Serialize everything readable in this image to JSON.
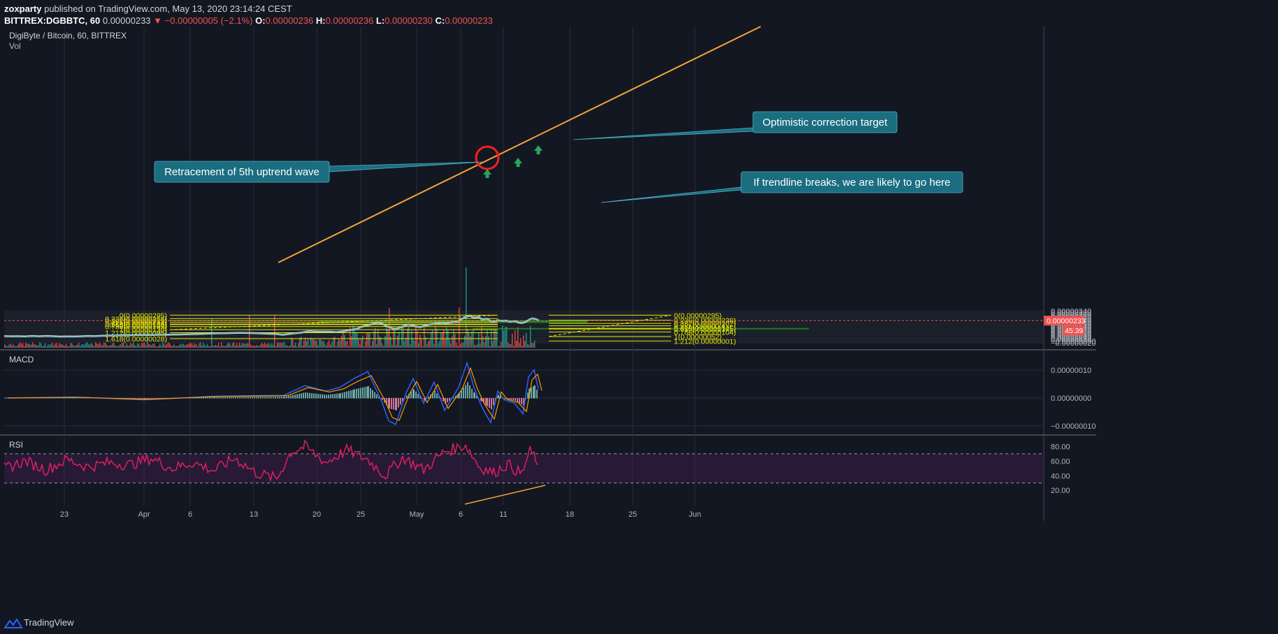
{
  "header": {
    "author": "zoxparty",
    "published": "published on TradingView.com, May 13, 2020 23:14:24 CEST",
    "symbol": "BITTREX:DGBBTC, 60",
    "price": "0.00000233",
    "arrow": "▼",
    "change": "−0.00000005 (−2.1%)",
    "o_label": "O:",
    "o_value": "0.00000236",
    "h_label": "H:",
    "h_value": "0.00000236",
    "l_label": "L:",
    "l_value": "0.00000230",
    "c_label": "C:",
    "c_value": "0.00000233"
  },
  "main_pane": {
    "title": "DigiByte / Bitcoin, 60, BITTREX",
    "vol_label": "Vol"
  },
  "macd_label": "MACD",
  "rsi_label": "RSI",
  "last_price_tag": "0.00000233",
  "countdown_tag": "45:39",
  "footer": {
    "brand": "TradingView"
  },
  "colors": {
    "background": "#131722",
    "grid": "#2a2e39",
    "fib": "#e5e500",
    "trendline": "#f7a23b",
    "zone": "#1fa81f",
    "callout": "#1b6d80",
    "rsi": "#e91e63",
    "macd_line": "#2962ff",
    "signal_line": "#ff9800",
    "up": "#26a69a",
    "down": "#ef5350"
  },
  "chart_data": {
    "type": "candlestick",
    "x_ticks": [
      "23",
      "Apr",
      "6",
      "13",
      "20",
      "25",
      "May",
      "6",
      "11",
      "18",
      "25",
      "Jun"
    ],
    "y_ticks": [
      "0.00000340",
      "0.00000320",
      "0.00000300",
      "0.00000280",
      "0.00000260",
      "0.00000240",
      "0.00000220",
      "0.00000200",
      "0.00000180",
      "0.00000160",
      "0.00000140",
      "0.00000120",
      "0.00000100",
      "0.00000080",
      "0.00000060",
      "0.00000040",
      "0.00000020",
      "−0.00000000",
      "−0.00000020"
    ],
    "y_tick_values": [
      340,
      320,
      300,
      280,
      260,
      240,
      220,
      200,
      180,
      160,
      140,
      120,
      100,
      80,
      60,
      40,
      20,
      0,
      -20
    ],
    "y_unit_scale": "1e-8 BTC",
    "last_price": 233,
    "price_path": [
      [
        0,
        57
      ],
      [
        10,
        55
      ],
      [
        20,
        56
      ],
      [
        30,
        54
      ],
      [
        40,
        58
      ],
      [
        50,
        55
      ],
      [
        60,
        58
      ],
      [
        70,
        56
      ],
      [
        80,
        52
      ],
      [
        90,
        54
      ],
      [
        100,
        53
      ],
      [
        110,
        55
      ],
      [
        120,
        58
      ],
      [
        130,
        57
      ],
      [
        140,
        60
      ],
      [
        150,
        62
      ],
      [
        160,
        63
      ],
      [
        170,
        66
      ],
      [
        180,
        65
      ],
      [
        190,
        69
      ],
      [
        200,
        70
      ],
      [
        210,
        69
      ],
      [
        220,
        71
      ],
      [
        230,
        72
      ],
      [
        240,
        74
      ],
      [
        250,
        75
      ],
      [
        260,
        77
      ],
      [
        270,
        79
      ],
      [
        280,
        81
      ],
      [
        290,
        84
      ],
      [
        300,
        87
      ],
      [
        310,
        89
      ],
      [
        320,
        90
      ],
      [
        330,
        93
      ],
      [
        340,
        94
      ],
      [
        350,
        92
      ],
      [
        360,
        90
      ],
      [
        370,
        86
      ],
      [
        380,
        83
      ],
      [
        390,
        80
      ],
      [
        398,
        72
      ],
      [
        405,
        78
      ],
      [
        415,
        88
      ],
      [
        425,
        96
      ],
      [
        435,
        112
      ],
      [
        445,
        109
      ],
      [
        455,
        107
      ],
      [
        465,
        108
      ],
      [
        475,
        102
      ],
      [
        485,
        110
      ],
      [
        495,
        125
      ],
      [
        505,
        140
      ],
      [
        510,
        160
      ],
      [
        518,
        176
      ],
      [
        525,
        190
      ],
      [
        530,
        205
      ],
      [
        535,
        212
      ],
      [
        540,
        200
      ],
      [
        545,
        178
      ],
      [
        550,
        160
      ],
      [
        555,
        148
      ],
      [
        558,
        135
      ],
      [
        565,
        150
      ],
      [
        572,
        170
      ],
      [
        578,
        188
      ],
      [
        584,
        175
      ],
      [
        590,
        165
      ],
      [
        595,
        158
      ],
      [
        602,
        175
      ],
      [
        610,
        190
      ],
      [
        618,
        198
      ],
      [
        625,
        210
      ],
      [
        632,
        205
      ],
      [
        640,
        213
      ],
      [
        648,
        220
      ],
      [
        654,
        250
      ],
      [
        660,
        272
      ],
      [
        666,
        290
      ],
      [
        672,
        262
      ],
      [
        678,
        275
      ],
      [
        684,
        245
      ],
      [
        690,
        256
      ],
      [
        696,
        228
      ],
      [
        700,
        218
      ],
      [
        706,
        238
      ],
      [
        712,
        230
      ],
      [
        718,
        233
      ],
      [
        724,
        220
      ],
      [
        730,
        228
      ],
      [
        736,
        210
      ],
      [
        740,
        205
      ],
      [
        746,
        218
      ],
      [
        750,
        240
      ],
      [
        755,
        258
      ],
      [
        760,
        252
      ],
      [
        765,
        233
      ]
    ],
    "macd_path": [
      [
        0,
        0
      ],
      [
        100,
        0.1
      ],
      [
        200,
        -0.2
      ],
      [
        300,
        0.2
      ],
      [
        400,
        0.3
      ],
      [
        430,
        1.4
      ],
      [
        460,
        0.8
      ],
      [
        480,
        1.2
      ],
      [
        500,
        2.2
      ],
      [
        520,
        3.0
      ],
      [
        540,
        -0.4
      ],
      [
        550,
        -2.6
      ],
      [
        560,
        -3.0
      ],
      [
        575,
        0.6
      ],
      [
        585,
        2.2
      ],
      [
        600,
        -0.6
      ],
      [
        615,
        1.8
      ],
      [
        630,
        -1.4
      ],
      [
        650,
        1.2
      ],
      [
        662,
        4.0
      ],
      [
        672,
        1.2
      ],
      [
        682,
        -0.8
      ],
      [
        690,
        -2.0
      ],
      [
        696,
        -2.8
      ],
      [
        706,
        0.8
      ],
      [
        715,
        -0.2
      ],
      [
        730,
        -0.6
      ],
      [
        742,
        -1.8
      ],
      [
        750,
        2.4
      ],
      [
        758,
        3.2
      ],
      [
        764,
        1.0
      ]
    ],
    "rsi_path": [
      [
        0,
        50
      ],
      [
        30,
        60
      ],
      [
        60,
        48
      ],
      [
        90,
        62
      ],
      [
        120,
        52
      ],
      [
        150,
        58
      ],
      [
        180,
        55
      ],
      [
        210,
        64
      ],
      [
        240,
        50
      ],
      [
        270,
        58
      ],
      [
        300,
        47
      ],
      [
        330,
        64
      ],
      [
        360,
        44
      ],
      [
        390,
        36
      ],
      [
        410,
        72
      ],
      [
        430,
        80
      ],
      [
        460,
        58
      ],
      [
        490,
        75
      ],
      [
        520,
        62
      ],
      [
        545,
        40
      ],
      [
        570,
        65
      ],
      [
        600,
        48
      ],
      [
        630,
        73
      ],
      [
        660,
        82
      ],
      [
        680,
        52
      ],
      [
        700,
        44
      ],
      [
        720,
        56
      ],
      [
        740,
        42
      ],
      [
        752,
        73
      ],
      [
        760,
        65
      ],
      [
        764,
        42
      ]
    ],
    "rsi_ticks": [
      "80.00",
      "60.00",
      "40.00",
      "20.00"
    ],
    "rsi_tick_values": [
      80,
      60,
      40,
      20
    ],
    "fib_left": [
      {
        "label": "0(0.00000295)",
        "value": 295
      },
      {
        "label": "0.236(0.00000256)",
        "value": 256
      },
      {
        "label": "0.382(0.00000232)",
        "value": 232
      },
      {
        "label": "0.5(0.00000213)",
        "value": 213
      },
      {
        "label": "0.618(0.00000193)",
        "value": 193
      },
      {
        "label": "0.65(0.00000188)",
        "value": 188
      },
      {
        "label": "0.786(0.00000165)",
        "value": 165
      },
      {
        "label": "1(0.00000130)",
        "value": 130
      },
      {
        "label": "1.212(0.00000095)",
        "value": 95
      },
      {
        "label": "1.618(0.00000028)",
        "value": 28
      }
    ],
    "fib_right": [
      {
        "label": "0(0.00000295)",
        "value": 295
      },
      {
        "label": "0.236(0.00000238)",
        "value": 238
      },
      {
        "label": "0.382(0.00000202)",
        "value": 202
      },
      {
        "label": "0.5(0.00000174)",
        "value": 174
      },
      {
        "label": "0.618(0.00000145)",
        "value": 145
      },
      {
        "label": "0.65(0.00000137)",
        "value": 137
      },
      {
        "label": "0.786(0.00000104)",
        "value": 104
      },
      {
        "label": "1(0.00000052)",
        "value": 52
      },
      {
        "label": "1.212(0.00000001)",
        "value": 1
      }
    ],
    "annotations": [
      {
        "text": "Retracement of 5th uptrend wave"
      },
      {
        "text": "Optimistic correction target"
      },
      {
        "text": "If trendline breaks, we are likely to go here"
      }
    ]
  }
}
